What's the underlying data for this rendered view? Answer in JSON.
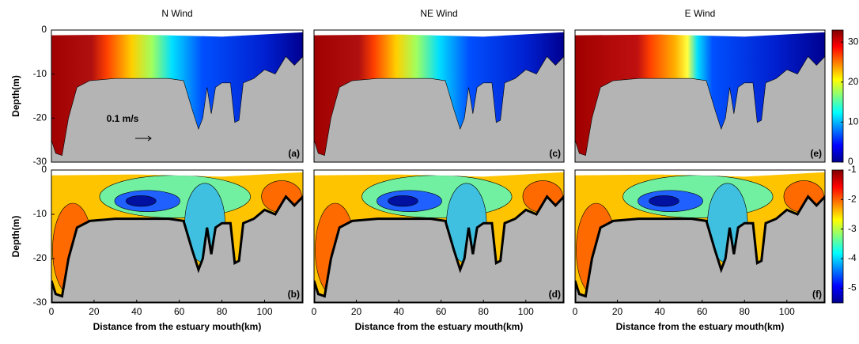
{
  "chart_data": [
    {
      "type": "contour",
      "title": "N Wind",
      "panel_label": "(a)",
      "ylabel": "Depth(m)",
      "annotation": "0.1 m/s",
      "xlim": [
        0,
        118
      ],
      "ylim": [
        -30,
        0
      ],
      "yticks": [
        -30,
        -20,
        -10,
        0
      ]
    },
    {
      "type": "contour",
      "panel_label": "(b)",
      "ylabel": "Depth(m)",
      "xlabel": "Distance from the estuary mouth(km)",
      "xlim": [
        0,
        118
      ],
      "ylim": [
        -30,
        0
      ],
      "xticks": [
        0,
        20,
        40,
        60,
        80,
        100
      ],
      "yticks": [
        -30,
        -20,
        -10,
        0
      ]
    },
    {
      "type": "contour",
      "title": "NE Wind",
      "panel_label": "(c)",
      "xlim": [
        0,
        118
      ],
      "ylim": [
        -30,
        0
      ]
    },
    {
      "type": "contour",
      "panel_label": "(d)",
      "xlabel": "Distance from the estuary mouth(km)",
      "xlim": [
        0,
        118
      ],
      "ylim": [
        -30,
        0
      ],
      "xticks": [
        0,
        20,
        40,
        60,
        80,
        100
      ]
    },
    {
      "type": "contour",
      "title": "E Wind",
      "panel_label": "(e)",
      "xlim": [
        0,
        118
      ],
      "ylim": [
        -30,
        0
      ]
    },
    {
      "type": "contour",
      "panel_label": "(f)",
      "xlabel": "Distance from the estuary mouth(km)",
      "xlim": [
        0,
        118
      ],
      "ylim": [
        -30,
        0
      ],
      "xticks": [
        0,
        20,
        40,
        60,
        80,
        100
      ]
    },
    {
      "type": "colorbar",
      "ylim": [
        0,
        33
      ],
      "yticks": [
        0,
        10,
        20,
        30
      ]
    },
    {
      "type": "colorbar",
      "ylim": [
        -5.5,
        -1
      ],
      "yticks": [
        -5,
        -4,
        -3,
        -2,
        -1
      ]
    }
  ]
}
